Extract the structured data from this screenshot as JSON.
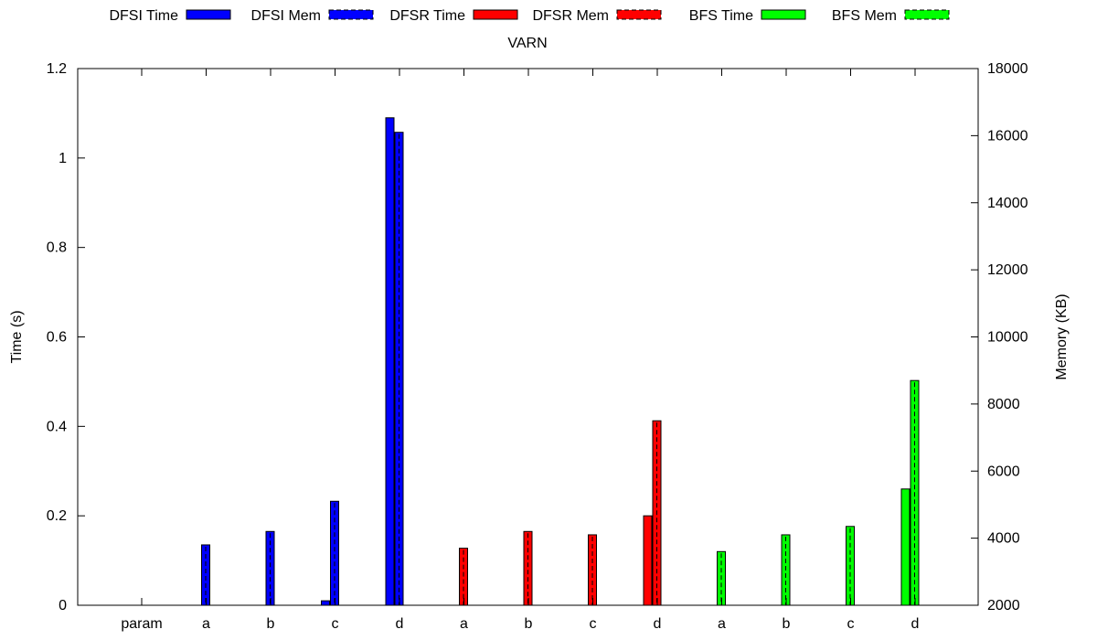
{
  "chart_data": {
    "type": "bar",
    "title": "VARN",
    "ylabel": "Time (s)",
    "y2label": "Memory (KB)",
    "ylim": [
      0,
      1.2
    ],
    "y2lim": [
      2000,
      18000
    ],
    "yticks": [
      "0",
      "0.2",
      "0.4",
      "0.6",
      "0.8",
      "1",
      "1.2"
    ],
    "y2ticks": [
      "2000",
      "4000",
      "6000",
      "8000",
      "10000",
      "12000",
      "14000",
      "16000",
      "18000"
    ],
    "categories": [
      "param",
      "a",
      "b",
      "c",
      "d",
      "a",
      "b",
      "c",
      "d",
      "a",
      "b",
      "c",
      "d"
    ],
    "grid": false,
    "legend_position": "top",
    "series": [
      {
        "name": "DFSI Time",
        "axis": "time",
        "style": "solid",
        "color": "#0000ff",
        "values": [
          null,
          0,
          0,
          0.01,
          1.09,
          null,
          null,
          null,
          null,
          null,
          null,
          null,
          null
        ]
      },
      {
        "name": "DFSI Mem",
        "axis": "memory",
        "style": "dashed",
        "color": "#0000ff",
        "values": [
          null,
          3800,
          4200,
          5100,
          16100,
          null,
          null,
          null,
          null,
          null,
          null,
          null,
          null
        ]
      },
      {
        "name": "DFSR Time",
        "axis": "time",
        "style": "solid",
        "color": "#ff0000",
        "values": [
          null,
          null,
          null,
          null,
          null,
          0,
          0,
          0,
          0.2,
          null,
          null,
          null,
          null
        ]
      },
      {
        "name": "DFSR Mem",
        "axis": "memory",
        "style": "dashed",
        "color": "#ff0000",
        "values": [
          null,
          null,
          null,
          null,
          null,
          3700,
          4200,
          4100,
          7500,
          null,
          null,
          null,
          null
        ]
      },
      {
        "name": "BFS Time",
        "axis": "time",
        "style": "solid",
        "color": "#00ff00",
        "values": [
          null,
          null,
          null,
          null,
          null,
          null,
          null,
          null,
          null,
          0,
          0,
          0,
          0.26
        ]
      },
      {
        "name": "BFS Mem",
        "axis": "memory",
        "style": "dashed",
        "color": "#00ff00",
        "values": [
          null,
          null,
          null,
          null,
          null,
          null,
          null,
          null,
          null,
          3600,
          4100,
          4350,
          8700
        ]
      }
    ]
  }
}
